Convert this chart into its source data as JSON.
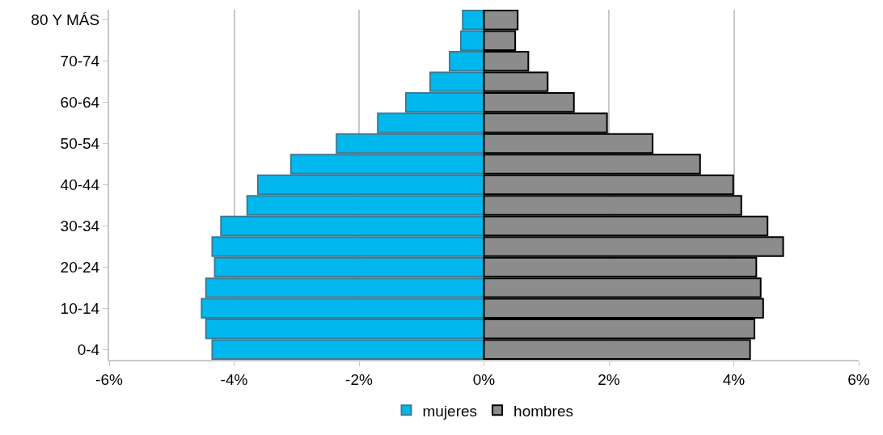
{
  "chart_data": {
    "type": "bar",
    "orientation": "horizontal",
    "stacked": true,
    "categories": [
      "80 Y MÁS",
      null,
      "70-74",
      null,
      "60-64",
      null,
      "50-54",
      null,
      "40-44",
      null,
      "30-34",
      null,
      "20-24",
      null,
      "10-14",
      null,
      "0-4"
    ],
    "series": [
      {
        "name": "mujeres",
        "color": "#00b8ee",
        "values": [
          -0.34,
          -0.37,
          -0.55,
          -0.86,
          -1.25,
          -1.7,
          -2.36,
          -3.09,
          -3.62,
          -3.79,
          -4.21,
          -4.35,
          -4.31,
          -4.45,
          -4.52,
          -4.45,
          -4.35
        ]
      },
      {
        "name": "hombres",
        "color": "#8c8c8c",
        "values": [
          0.54,
          0.5,
          0.71,
          1.02,
          1.44,
          1.97,
          2.7,
          3.46,
          3.99,
          4.12,
          4.54,
          4.79,
          4.36,
          4.43,
          4.47,
          4.33,
          4.26
        ]
      }
    ],
    "xlim": [
      -6,
      6
    ],
    "xticks": [
      {
        "value": -6,
        "label": "-6%"
      },
      {
        "value": -4,
        "label": "-4%"
      },
      {
        "value": -2,
        "label": "-2%"
      },
      {
        "value": 0,
        "label": "0%"
      },
      {
        "value": 2,
        "label": "2%"
      },
      {
        "value": 4,
        "label": "4%"
      },
      {
        "value": 6,
        "label": "6%"
      }
    ],
    "grid": "x",
    "legend": "bottom"
  }
}
